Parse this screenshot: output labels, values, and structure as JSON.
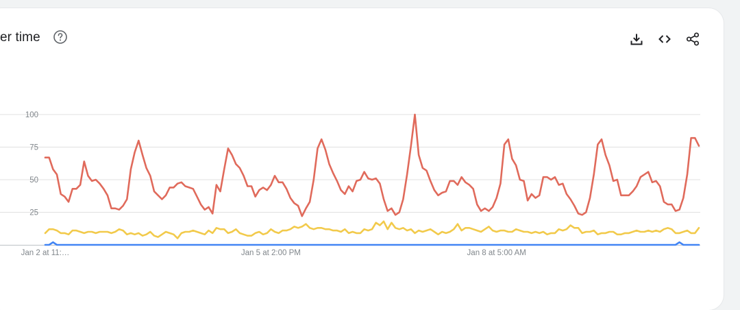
{
  "header": {
    "title": "er time",
    "actions": [
      {
        "name": "download-icon"
      },
      {
        "name": "embed-code-icon"
      },
      {
        "name": "share-icon"
      }
    ]
  },
  "chart_data": {
    "type": "line",
    "title": "",
    "xlabel": "",
    "ylabel": "",
    "ylim": [
      0,
      100
    ],
    "y_ticks": [
      25,
      50,
      75,
      100
    ],
    "x_tick_labels": [
      {
        "index": 0,
        "label": "Jan 2 at 11:…"
      },
      {
        "index": 58,
        "label": "Jan 5 at 2:00 PM"
      },
      {
        "index": 116,
        "label": "Jan 8 at 5:00 AM"
      }
    ],
    "grid": true,
    "legend": "none",
    "series": [
      {
        "color": "#e06a5b",
        "values": [
          67,
          67,
          58,
          54,
          39,
          37,
          33,
          43,
          43,
          46,
          64,
          53,
          49,
          50,
          47,
          43,
          38,
          28,
          28,
          27,
          30,
          35,
          58,
          71,
          80,
          69,
          59,
          53,
          41,
          38,
          35,
          38,
          44,
          44,
          47,
          48,
          45,
          44,
          43,
          37,
          31,
          27,
          29,
          24,
          46,
          41,
          58,
          74,
          69,
          62,
          59,
          53,
          45,
          45,
          37,
          42,
          44,
          42,
          46,
          53,
          48,
          48,
          43,
          36,
          32,
          30,
          22,
          28,
          33,
          50,
          74,
          81,
          73,
          62,
          55,
          49,
          42,
          39,
          45,
          41,
          49,
          50,
          56,
          51,
          50,
          51,
          47,
          35,
          26,
          28,
          23,
          25,
          35,
          54,
          76,
          100,
          69,
          59,
          57,
          49,
          42,
          38,
          40,
          41,
          49,
          49,
          46,
          52,
          48,
          46,
          43,
          31,
          26,
          28,
          26,
          29,
          36,
          47,
          77,
          81,
          66,
          61,
          50,
          49,
          34,
          39,
          36,
          38,
          52,
          52,
          50,
          52,
          46,
          47,
          39,
          35,
          30,
          24,
          23,
          25,
          36,
          54,
          77,
          81,
          69,
          61,
          49,
          50,
          38,
          38,
          38,
          41,
          45,
          52,
          54,
          56,
          48,
          49,
          45,
          33,
          31,
          31,
          26,
          27,
          36,
          54,
          82,
          82,
          76
        ]
      },
      {
        "color": "#f2ca4b",
        "values": [
          9,
          12,
          12,
          11,
          9,
          9,
          8,
          11,
          11,
          10,
          9,
          10,
          10,
          9,
          10,
          10,
          10,
          9,
          10,
          12,
          11,
          8,
          9,
          8,
          9,
          7,
          8,
          10,
          7,
          6,
          8,
          10,
          9,
          8,
          5,
          9,
          10,
          10,
          11,
          10,
          9,
          8,
          11,
          9,
          13,
          12,
          12,
          9,
          10,
          12,
          9,
          8,
          7,
          7,
          9,
          10,
          8,
          9,
          12,
          10,
          9,
          11,
          11,
          12,
          14,
          13,
          14,
          16,
          13,
          12,
          13,
          13,
          12,
          12,
          11,
          11,
          10,
          12,
          9,
          10,
          9,
          9,
          12,
          11,
          12,
          17,
          15,
          18,
          12,
          17,
          13,
          12,
          13,
          11,
          12,
          9,
          11,
          10,
          11,
          12,
          10,
          8,
          10,
          9,
          10,
          12,
          16,
          11,
          13,
          13,
          12,
          11,
          10,
          12,
          14,
          11,
          10,
          11,
          11,
          10,
          10,
          12,
          11,
          10,
          10,
          9,
          10,
          9,
          10,
          8,
          9,
          9,
          12,
          11,
          12,
          15,
          13,
          13,
          9,
          10,
          10,
          11,
          8,
          9,
          9,
          10,
          10,
          8,
          8,
          9,
          9,
          10,
          11,
          10,
          10,
          11,
          10,
          11,
          10,
          12,
          13,
          12,
          9,
          9,
          10,
          11,
          9,
          9,
          13
        ]
      },
      {
        "color": "#4285f4",
        "values": [
          0,
          0,
          2,
          0,
          0,
          0,
          0,
          0,
          0,
          0,
          0,
          0,
          0,
          0,
          0,
          0,
          0,
          0,
          0,
          0,
          0,
          0,
          0,
          0,
          0,
          0,
          0,
          0,
          0,
          0,
          0,
          0,
          0,
          0,
          0,
          0,
          0,
          0,
          0,
          0,
          0,
          0,
          0,
          0,
          0,
          0,
          0,
          0,
          0,
          0,
          0,
          0,
          0,
          0,
          0,
          0,
          0,
          0,
          0,
          0,
          0,
          0,
          0,
          0,
          0,
          0,
          0,
          0,
          0,
          0,
          0,
          0,
          0,
          0,
          0,
          0,
          0,
          0,
          0,
          0,
          0,
          0,
          0,
          0,
          0,
          0,
          0,
          0,
          0,
          0,
          0,
          0,
          0,
          0,
          0,
          0,
          0,
          0,
          0,
          0,
          0,
          0,
          0,
          0,
          0,
          0,
          0,
          0,
          0,
          0,
          0,
          0,
          0,
          0,
          0,
          0,
          0,
          0,
          0,
          0,
          0,
          0,
          0,
          0,
          0,
          0,
          0,
          0,
          0,
          0,
          0,
          0,
          0,
          0,
          0,
          0,
          0,
          0,
          0,
          0,
          0,
          0,
          0,
          0,
          0,
          0,
          0,
          0,
          0,
          0,
          0,
          0,
          0,
          0,
          0,
          0,
          0,
          0,
          0,
          0,
          0,
          0,
          0,
          2,
          0,
          0,
          0,
          0,
          0
        ]
      }
    ]
  }
}
